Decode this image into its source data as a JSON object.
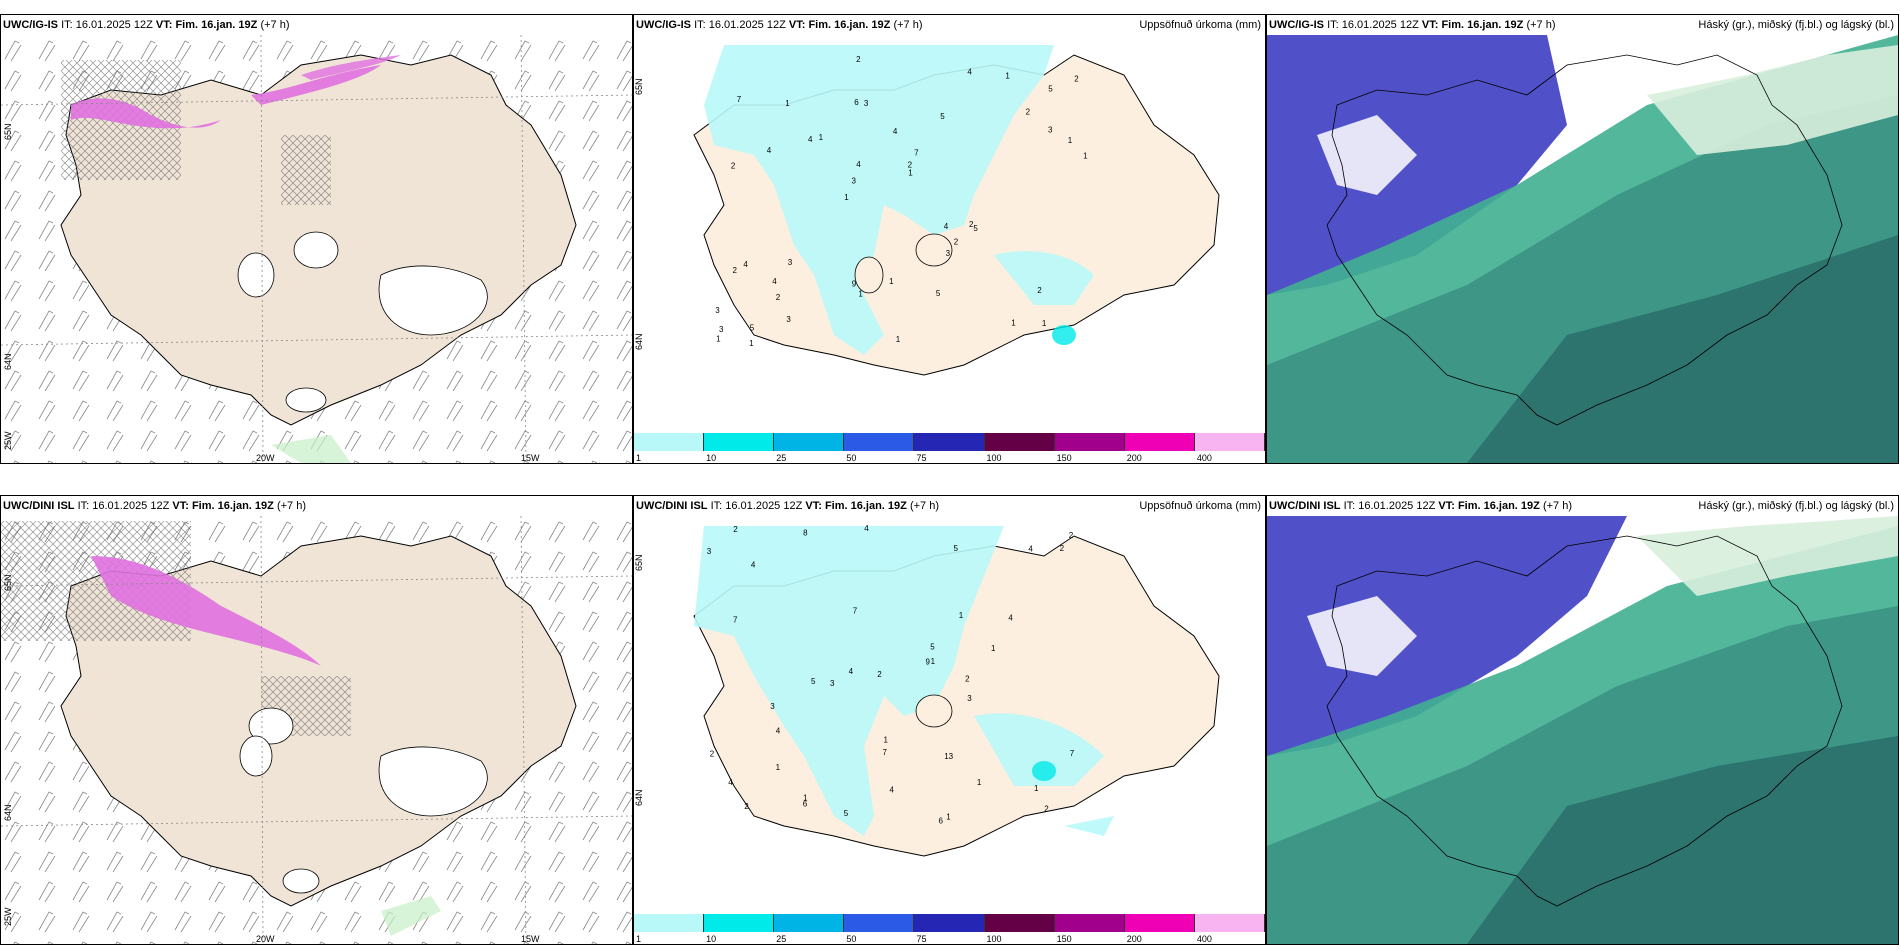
{
  "top_row": {
    "wind_panel": {
      "model": "UWC/IG-IS",
      "it_label": "IT:",
      "it_value": "16.01.2025 12Z",
      "vt_label": "VT:",
      "vt_value": "Fim. 16.jan. 19Z",
      "lead": "(+7 h)",
      "lat_labels": [
        "65N",
        "64N",
        "25W"
      ],
      "lon_labels": [
        "20W",
        "15W"
      ]
    },
    "precip_panel": {
      "model": "UWC/IG-IS",
      "it_label": "IT:",
      "it_value": "16.01.2025 12Z",
      "vt_label": "VT:",
      "vt_value": "Fim. 16.jan. 19Z",
      "lead": "(+7 h)",
      "title": "Uppsöfnuð úrkoma (mm)",
      "lat_labels": [
        "65N",
        "64N"
      ]
    },
    "cloud_panel": {
      "model": "UWC/IG-IS",
      "it_label": "IT:",
      "it_value": "16.01.2025 12Z",
      "vt_label": "VT:",
      "vt_value": "Fim. 16.jan. 19Z",
      "lead": "(+7 h)",
      "title": "Háský (gr.), miðský (fj.bl.) og lágský (bl.)"
    }
  },
  "bottom_row": {
    "wind_panel": {
      "model": "UWC/DINI ISL",
      "it_label": "IT:",
      "it_value": "16.01.2025 12Z",
      "vt_label": "VT:",
      "vt_value": "Fim. 16.jan. 19Z",
      "lead": "(+7 h)",
      "lat_labels": [
        "65N",
        "64N",
        "25W"
      ],
      "lon_labels": [
        "20W",
        "15W"
      ]
    },
    "precip_panel": {
      "model": "UWC/DINI ISL",
      "it_label": "IT:",
      "it_value": "16.01.2025 12Z",
      "vt_label": "VT:",
      "vt_value": "Fim. 16.jan. 19Z",
      "lead": "(+7 h)",
      "title": "Uppsöfnuð úrkoma (mm)",
      "lat_labels": [
        "65N",
        "64N"
      ]
    },
    "cloud_panel": {
      "model": "UWC/DINI ISL",
      "it_label": "IT:",
      "it_value": "16.01.2025 12Z",
      "vt_label": "VT:",
      "vt_value": "Fim. 16.jan. 19Z",
      "lead": "(+7 h)",
      "title": "Háský (gr.), miðský (fj.bl.) og lágský (bl.)"
    }
  },
  "colorbar": {
    "labels": [
      "1",
      "10",
      "25",
      "50",
      "75",
      "100",
      "150",
      "200",
      "400"
    ],
    "colors": [
      "#b8f8f8",
      "#00eaea",
      "#00b4e6",
      "#2a5ae6",
      "#2626b4",
      "#640046",
      "#a0008c",
      "#f000b4",
      "#f8b4f0"
    ]
  },
  "colors": {
    "land": "#efe4d6",
    "land_precip": "#fcefe0",
    "precip_light": "#b8f8f8",
    "snow_pink": "#e070e0",
    "cloud_high": "#5050c8",
    "cloud_mid": "#40b090",
    "cloud_low": "#2a6e6a"
  },
  "precip_values_top": [
    "1",
    "2",
    "5",
    "1",
    "5",
    "5",
    "6",
    "4",
    "4",
    "1",
    "3",
    "2",
    "3",
    "7",
    "5",
    "7",
    "2",
    "1",
    "4",
    "3",
    "3",
    "9",
    "4",
    "1",
    "4",
    "3",
    "1",
    "2",
    "2",
    "1",
    "4",
    "4",
    "3",
    "3",
    "1",
    "2",
    "3",
    "1",
    "1",
    "2",
    "2",
    "2",
    "2",
    "5",
    "4",
    "1",
    "1",
    "1",
    "1"
  ],
  "precip_values_bottom": [
    "5",
    "6",
    "1",
    "1",
    "8",
    "4",
    "5",
    "2",
    "4",
    "7",
    "4",
    "4",
    "4",
    "7",
    "5",
    "9",
    "7",
    "6",
    "3",
    "3",
    "13",
    "2",
    "5",
    "2",
    "4",
    "3",
    "2",
    "4",
    "2",
    "3",
    "2",
    "1",
    "1",
    "2",
    "1",
    "2",
    "7",
    "4",
    "1",
    "1",
    "1",
    "1"
  ]
}
